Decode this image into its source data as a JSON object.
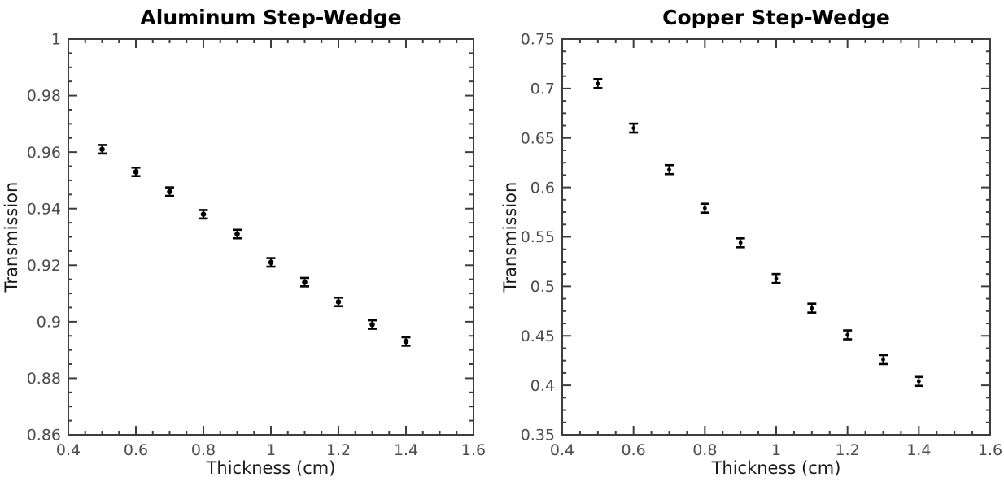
{
  "figure": {
    "background": "#ffffff",
    "axis_color": "#3d3d3d",
    "tick_label_color": "#4d4d4d",
    "text_color": "#1a1a1a",
    "marker_color": "#000000"
  },
  "chart_data": [
    {
      "type": "scatter",
      "title": "Aluminum Step-Wedge",
      "xlabel": "Thickness (cm)",
      "ylabel": "Transmission",
      "xlim": [
        0.4,
        1.6
      ],
      "ylim": [
        0.86,
        1.0
      ],
      "x_major_step": 0.2,
      "x_minor_step": 0.05,
      "y_major_step": 0.02,
      "y_minor_step": 0.005,
      "x_tick_labels": [
        "0.4",
        "0.6",
        "0.8",
        "1",
        "1.2",
        "1.4",
        "1.6"
      ],
      "y_tick_labels": [
        "0.86",
        "0.88",
        "0.9",
        "0.92",
        "0.94",
        "0.96",
        "0.98",
        "1"
      ],
      "grid": false,
      "legend": false,
      "marker": "filled-circle-with-error-bars",
      "marker_radius": 3.3,
      "x": [
        0.5,
        0.6,
        0.7,
        0.8,
        0.9,
        1.0,
        1.1,
        1.2,
        1.3,
        1.4
      ],
      "y": [
        0.961,
        0.953,
        0.946,
        0.938,
        0.931,
        0.921,
        0.914,
        0.907,
        0.899,
        0.893
      ],
      "y_err": [
        0.0015,
        0.0015,
        0.0015,
        0.0015,
        0.0015,
        0.0015,
        0.0015,
        0.0015,
        0.0015,
        0.0015
      ]
    },
    {
      "type": "scatter",
      "title": "Copper Step-Wedge",
      "xlabel": "Thickness (cm)",
      "ylabel": "Transmission",
      "xlim": [
        0.4,
        1.6
      ],
      "ylim": [
        0.35,
        0.75
      ],
      "x_major_step": 0.2,
      "x_minor_step": 0.05,
      "y_major_step": 0.05,
      "y_minor_step": 0.0125,
      "x_tick_labels": [
        "0.4",
        "0.6",
        "0.8",
        "1",
        "1.2",
        "1.4",
        "1.6"
      ],
      "y_tick_labels": [
        "0.35",
        "0.4",
        "0.45",
        "0.5",
        "0.55",
        "0.6",
        "0.65",
        "0.7",
        "0.75"
      ],
      "grid": false,
      "legend": false,
      "marker": "filled-circle-with-error-bars",
      "marker_radius": 2.4,
      "x": [
        0.5,
        0.6,
        0.7,
        0.8,
        0.9,
        1.0,
        1.1,
        1.2,
        1.3,
        1.4
      ],
      "y": [
        0.705,
        0.66,
        0.618,
        0.579,
        0.544,
        0.508,
        0.478,
        0.451,
        0.426,
        0.404
      ],
      "y_err": [
        0.0045,
        0.0045,
        0.0045,
        0.0045,
        0.0045,
        0.0045,
        0.0045,
        0.0045,
        0.0045,
        0.0045
      ]
    }
  ]
}
